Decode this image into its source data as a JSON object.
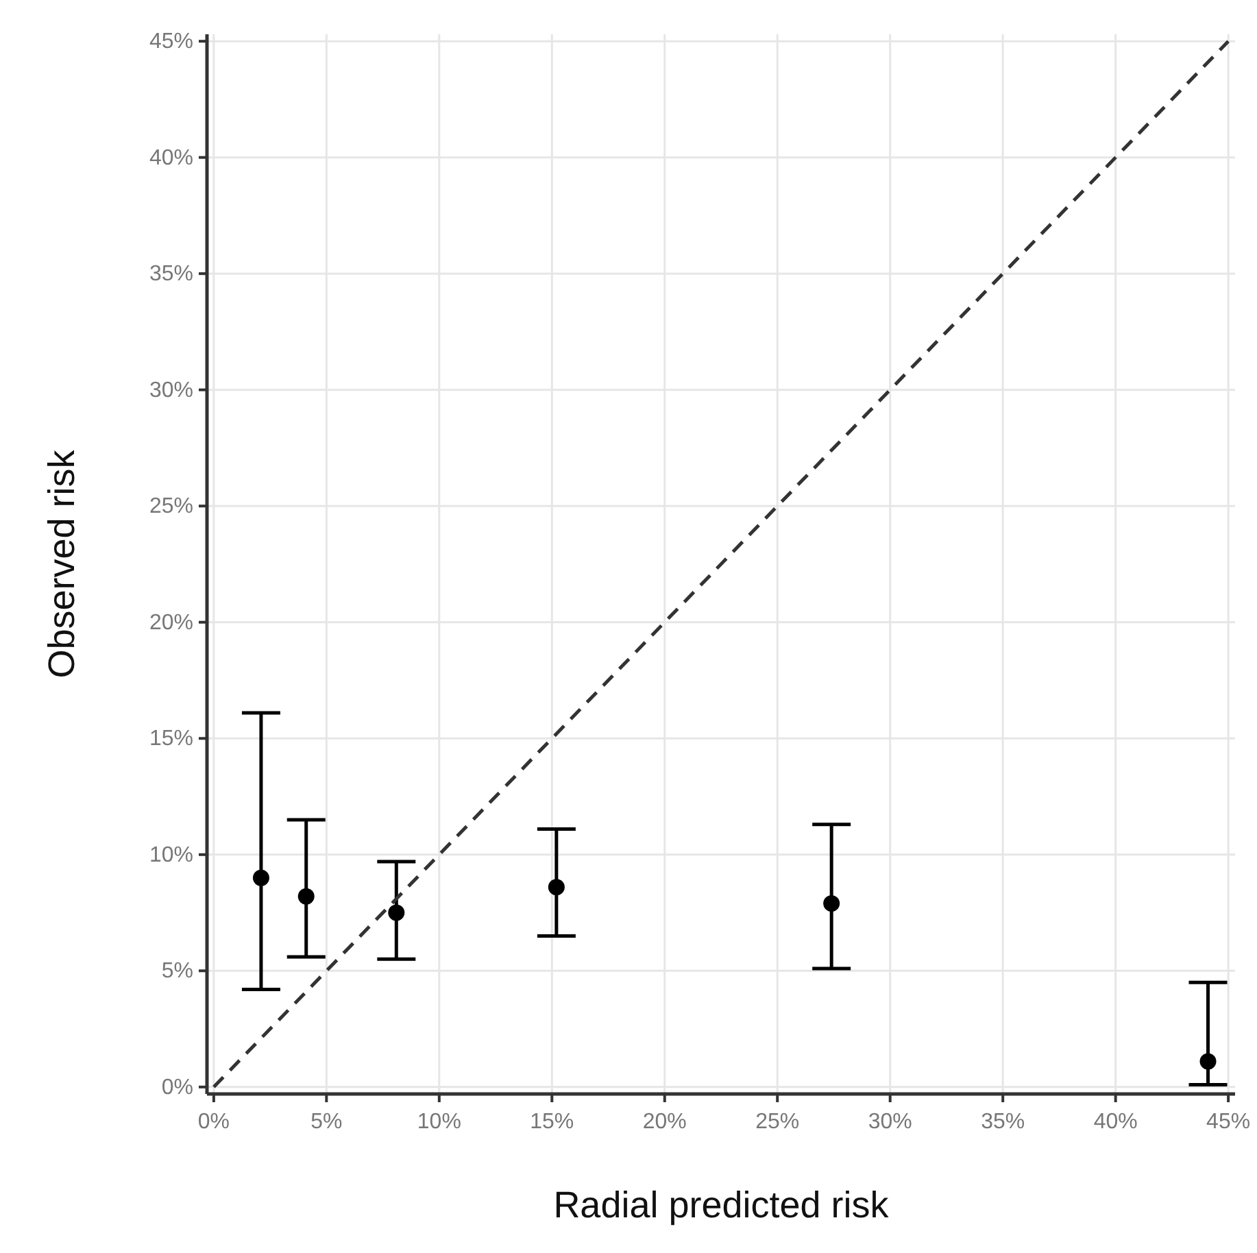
{
  "chart_data": {
    "type": "scatter",
    "xlabel": "Radial predicted risk",
    "ylabel": "Observed risk",
    "xlim": [
      -0.3,
      45.3
    ],
    "ylim": [
      -0.3,
      45.3
    ],
    "xticks": [
      {
        "value": 0,
        "label": "0%"
      },
      {
        "value": 5,
        "label": "5%"
      },
      {
        "value": 10,
        "label": "10%"
      },
      {
        "value": 15,
        "label": "15%"
      },
      {
        "value": 20,
        "label": "20%"
      },
      {
        "value": 25,
        "label": "25%"
      },
      {
        "value": 30,
        "label": "30%"
      },
      {
        "value": 35,
        "label": "35%"
      },
      {
        "value": 40,
        "label": "40%"
      },
      {
        "value": 45,
        "label": "45%"
      }
    ],
    "yticks": [
      {
        "value": 0,
        "label": "0%"
      },
      {
        "value": 5,
        "label": "5%"
      },
      {
        "value": 10,
        "label": "10%"
      },
      {
        "value": 15,
        "label": "15%"
      },
      {
        "value": 20,
        "label": "20%"
      },
      {
        "value": 25,
        "label": "25%"
      },
      {
        "value": 30,
        "label": "30%"
      },
      {
        "value": 35,
        "label": "35%"
      },
      {
        "value": 40,
        "label": "40%"
      },
      {
        "value": 45,
        "label": "45%"
      }
    ],
    "grid": true,
    "marker": "circle",
    "series": [
      {
        "color": "#000000",
        "x": [
          2.1,
          4.1,
          8.1,
          15.2,
          27.4,
          44.1
        ],
        "values": [
          9.0,
          8.2,
          7.5,
          8.6,
          7.9,
          1.1
        ],
        "errors": [
          [
            4.2,
            16.1
          ],
          [
            5.6,
            11.5
          ],
          [
            5.5,
            9.7
          ],
          [
            6.5,
            11.1
          ],
          [
            5.1,
            11.3
          ],
          [
            0.1,
            4.5
          ]
        ]
      },
      {
        "type": "line",
        "color": "#333333",
        "line_style": "dashed",
        "marker": "none",
        "x": [
          0,
          45
        ],
        "values": [
          0,
          45
        ]
      }
    ]
  }
}
